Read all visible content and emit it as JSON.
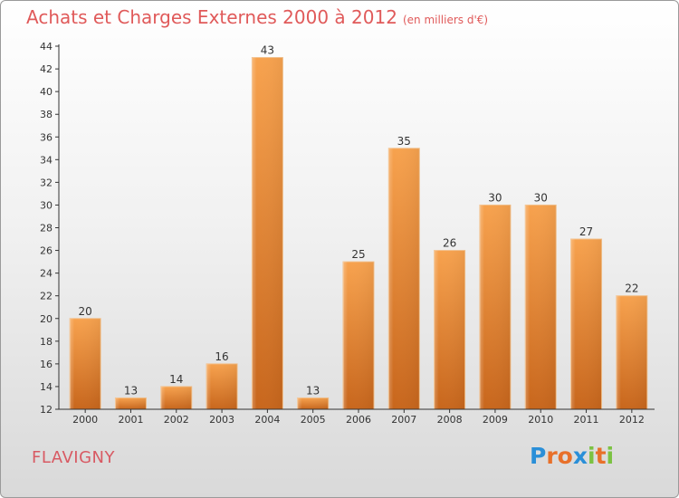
{
  "header": {
    "title": "Achats et Charges Externes 2000 à 2012",
    "subtitle": "(en milliers d'€)"
  },
  "footer": {
    "commune": "FLAVIGNY",
    "logo_letters": [
      "P",
      "r",
      "o",
      "x",
      "i",
      "t",
      "i"
    ],
    "logo_colors": [
      "#2a8fd8",
      "#e8702a",
      "#e8702a",
      "#2a8fd8",
      "#7cc242",
      "#e8702a",
      "#7cc242"
    ]
  },
  "colors": {
    "bar_top": "#f7a24e",
    "bar_bottom": "#c8661c",
    "title": "#e05a5a",
    "axis": "#333333"
  },
  "chart_data": {
    "type": "bar",
    "title": "Achats et Charges Externes 2000 à 2012",
    "subtitle": "(en milliers d'€)",
    "categories": [
      "2000",
      "2001",
      "2002",
      "2003",
      "2004",
      "2005",
      "2006",
      "2007",
      "2008",
      "2009",
      "2010",
      "2011",
      "2012"
    ],
    "values": [
      20,
      13,
      14,
      16,
      43,
      13,
      25,
      35,
      26,
      30,
      30,
      27,
      22
    ],
    "ylim": [
      12,
      44
    ],
    "yticks": [
      12,
      14,
      16,
      18,
      20,
      22,
      24,
      26,
      28,
      30,
      32,
      34,
      36,
      38,
      40,
      42,
      44
    ],
    "grid": false,
    "data_labels": true
  }
}
